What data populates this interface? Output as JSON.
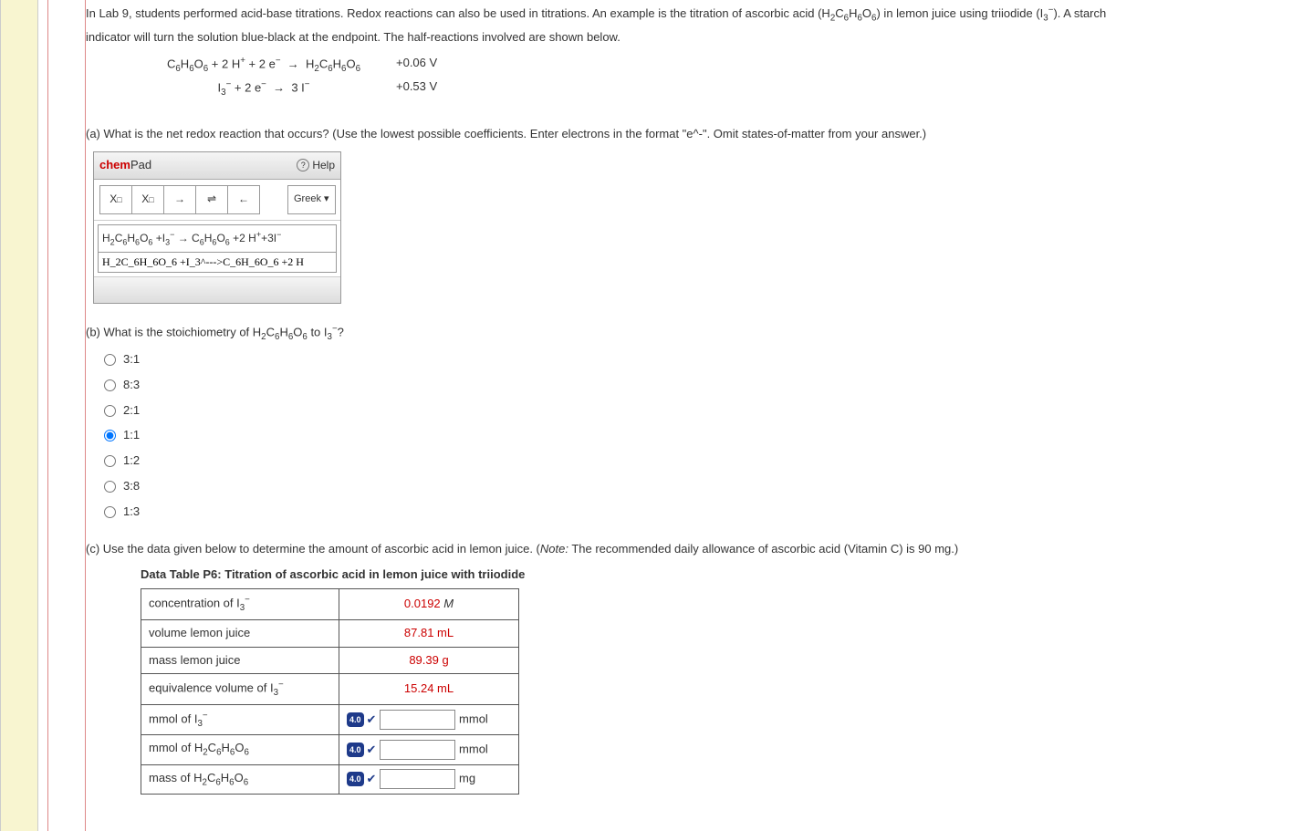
{
  "intro": {
    "line1_pre": "In Lab 9, students performed acid-base titrations. Redox reactions can also be used in titrations. An example is the titration of ascorbic acid (H",
    "line1_post": ") in lemon juice using triiodide (I",
    "line1_end": "). A starch",
    "line2": "indicator will turn the solution blue-black at the endpoint. The half-reactions involved are shown below."
  },
  "reactions": {
    "r1_v": "+0.06 V",
    "r2_v": "+0.53 V"
  },
  "partA": {
    "prompt": "(a) What is the net redox reaction that occurs? (Use the lowest possible coefficients. Enter electrons in the format \"e^-\". Omit states-of-matter from your answer.)",
    "chempad": {
      "title_chem": "chem",
      "title_pad": "Pad",
      "help": "Help",
      "greek": "Greek",
      "input": "H_2C_6H_6O_6 +I_3^--->C_6H_6O_6 +2 H"
    }
  },
  "partB": {
    "prompt_pre": "(b) What is the stoichiometry of H",
    "prompt_mid": " to I",
    "prompt_post": "?",
    "options": [
      "3:1",
      "8:3",
      "2:1",
      "1:1",
      "1:2",
      "3:8",
      "1:3"
    ],
    "selected": "1:1"
  },
  "partC": {
    "prompt_pre": "(c) Use the data given below to determine the amount of ascorbic acid in lemon juice. (",
    "note_label": "Note:",
    "prompt_post": " The recommended daily allowance of ascorbic acid (Vitamin C) is 90 mg.)",
    "table_title": "Data Table P6: Titration of ascorbic acid in lemon juice with triiodide",
    "rows": {
      "conc_label": "concentration of I",
      "conc_val": "0.0192",
      "conc_unit": " M",
      "vol_label": "volume lemon juice",
      "vol_val": "87.81 mL",
      "mass_label": "mass lemon juice",
      "mass_val": "89.39 g",
      "equiv_label": "equivalence volume of I",
      "equiv_val": "15.24 mL",
      "mmol_i3_label": "mmol of I",
      "mmol_i3_unit": "mmol",
      "mmol_h_label": "mmol of H",
      "mmol_h_unit": "mmol",
      "mass_h_label": "mass of H",
      "mass_h_unit": "mg",
      "badge": "4.0"
    }
  }
}
